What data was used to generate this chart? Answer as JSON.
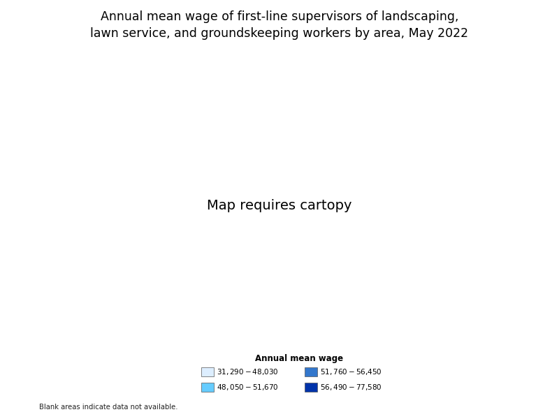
{
  "title_line1": "Annual mean wage of first-line supervisors of landscaping,",
  "title_line2": "lawn service, and groundskeeping workers by area, May 2022",
  "title_fontsize": 12.5,
  "legend_title": "Annual mean wage",
  "legend_title_fontsize": 8.5,
  "legend_fontsize": 7.5,
  "blank_note": "Blank areas indicate data not available.",
  "legend_items": [
    {
      "label": "$31,290 - $48,030",
      "color": "#ddeeff"
    },
    {
      "label": "$48,050 - $51,670",
      "color": "#66ccff"
    },
    {
      "label": "$51,760 - $56,450",
      "color": "#3377cc"
    },
    {
      "label": "$56,490 - $77,580",
      "color": "#0033aa"
    }
  ],
  "bin_colors": [
    "#ddeeff",
    "#66ccff",
    "#3377cc",
    "#0033aa"
  ],
  "no_data_color": "#ffffff",
  "background_color": "#ffffff",
  "county_edge_color": "#aaaaaa",
  "county_edge_width": 0.2,
  "state_edge_color": "#333333",
  "state_edge_width": 0.6,
  "figsize": [
    8.0,
    6.0
  ],
  "dpi": 100
}
